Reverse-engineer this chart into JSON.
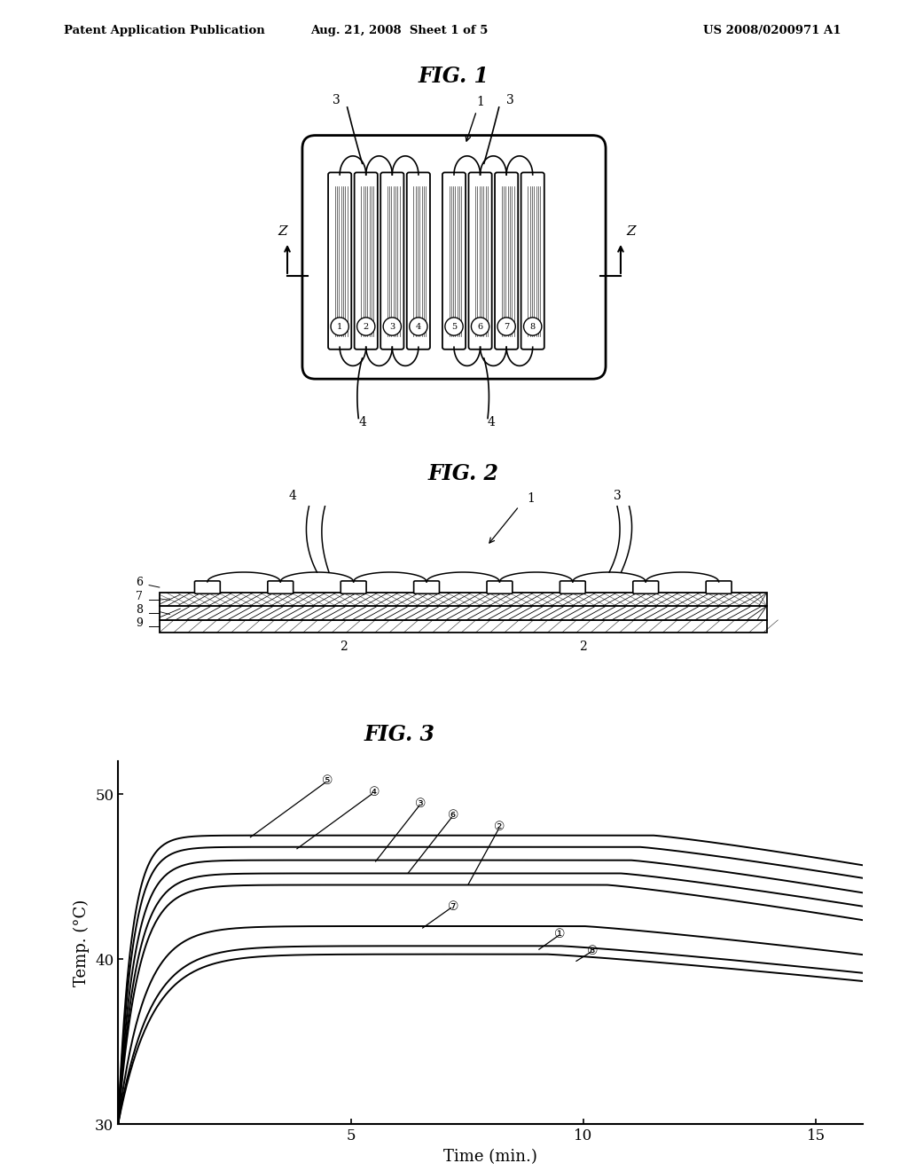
{
  "header_left": "Patent Application Publication",
  "header_center": "Aug. 21, 2008  Sheet 1 of 5",
  "header_right": "US 2008/0200971 A1",
  "fig1_title": "FIG. 1",
  "fig2_title": "FIG. 2",
  "fig3_title": "FIG. 3",
  "fig3_xlabel": "Time (min.)",
  "fig3_ylabel": "Temp. (°C)",
  "fig3_xlim": [
    0,
    16
  ],
  "fig3_ylim": [
    30,
    52
  ],
  "fig3_xticks": [
    5,
    10,
    15
  ],
  "fig3_yticks": [
    30,
    40,
    50
  ],
  "background_color": "#ffffff"
}
